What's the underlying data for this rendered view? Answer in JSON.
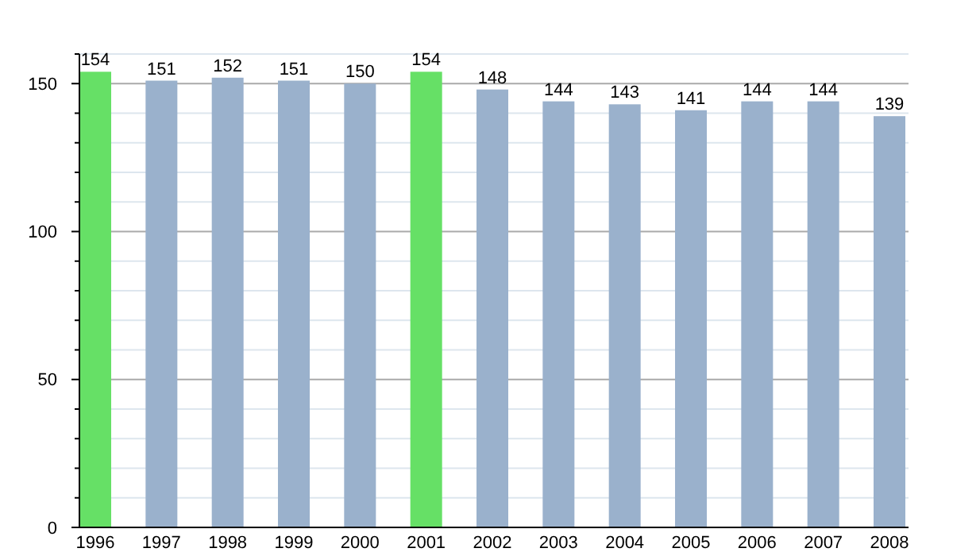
{
  "chart_data": {
    "type": "bar",
    "categories": [
      "1996",
      "1997",
      "1998",
      "1999",
      "2000",
      "2001",
      "2002",
      "2003",
      "2004",
      "2005",
      "2006",
      "2007",
      "2008"
    ],
    "values": [
      154,
      151,
      152,
      151,
      150,
      154,
      148,
      144,
      143,
      141,
      144,
      144,
      139
    ],
    "colors": [
      "#66e066",
      "#9ab1cc",
      "#9ab1cc",
      "#9ab1cc",
      "#9ab1cc",
      "#66e066",
      "#9ab1cc",
      "#9ab1cc",
      "#9ab1cc",
      "#9ab1cc",
      "#9ab1cc",
      "#9ab1cc",
      "#9ab1cc"
    ],
    "ylim": [
      0,
      160
    ],
    "yticks": [
      0,
      {
        "value": 10,
        "label": null
      },
      {
        "value": 20,
        "label": null
      },
      {
        "value": 30,
        "label": null
      },
      {
        "value": 40,
        "label": null
      },
      50,
      {
        "value": 60,
        "label": null
      },
      {
        "value": 70,
        "label": null
      },
      {
        "value": 80,
        "label": null
      },
      {
        "value": 90,
        "label": null
      },
      100,
      {
        "value": 110,
        "label": null
      },
      {
        "value": 120,
        "label": null
      },
      {
        "value": 130,
        "label": null
      },
      {
        "value": 140,
        "label": null
      },
      150,
      {
        "value": 160,
        "label": null
      }
    ],
    "grid": true,
    "data_labels": true
  }
}
